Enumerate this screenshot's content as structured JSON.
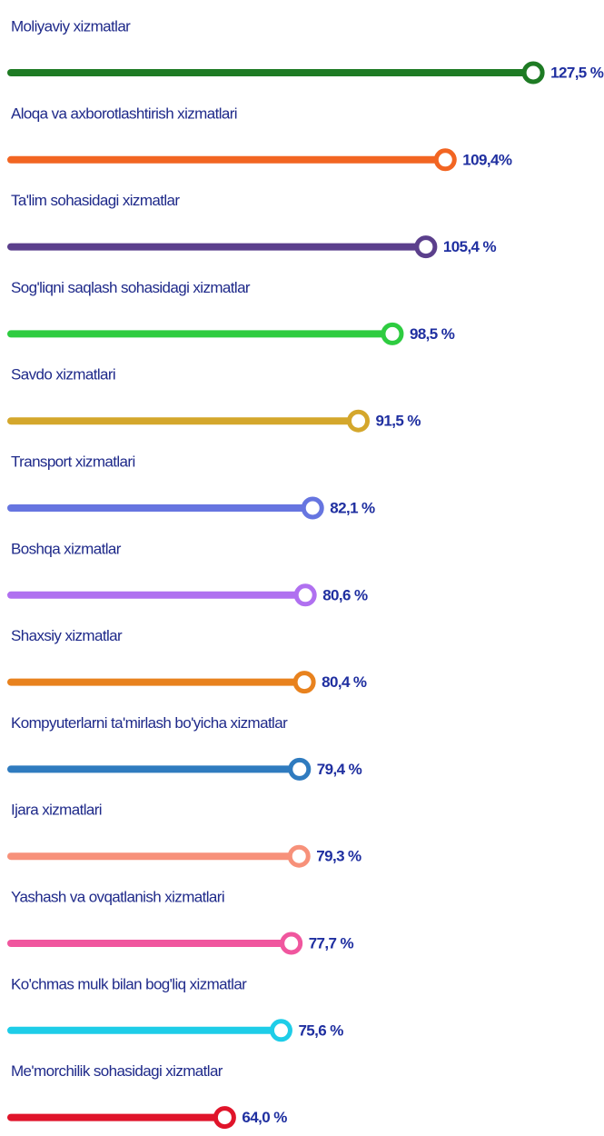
{
  "chart_data": {
    "type": "lollipop",
    "categories": [
      "Moliyaviy xizmatlar",
      "Aloqa va axborotlashtirish xizmatlari",
      "Ta'lim sohasidagi xizmatlar",
      "Sog'liqni saqlash sohasidagi xizmatlar",
      "Savdo xizmatlari",
      "Transport xizmatlari",
      "Boshqa xizmatlar",
      "Shaxsiy xizmatlar",
      "Kompyuterlarni ta'mirlash bo'yicha xizmatlar",
      "Ijara xizmatlari",
      "Yashash va ovqatlanish xizmatlari",
      "Ko'chmas mulk bilan bog'liq xizmatlar",
      "Me'morchilik sohasidagi xizmatlar"
    ],
    "values": [
      127.5,
      109.4,
      105.4,
      98.5,
      91.5,
      82.1,
      80.6,
      80.4,
      79.4,
      79.3,
      77.7,
      75.6,
      64.0
    ],
    "value_labels": [
      "127,5 %",
      "109,4%",
      "105,4 %",
      "98,5 %",
      "91,5 %",
      "82,1 %",
      "80,6 %",
      "80,4 %",
      "79,4 %",
      "79,3 %",
      "77,7 %",
      "75,6 %",
      "64,0 %"
    ],
    "colors": [
      "#1e7b24",
      "#f26522",
      "#5b3f8c",
      "#2ecc40",
      "#d4a72c",
      "#6675e0",
      "#b070f0",
      "#e8821e",
      "#2f7bbf",
      "#f7917a",
      "#f0569e",
      "#1ecde8",
      "#e0142a"
    ],
    "xlim": [
      20,
      140
    ]
  }
}
